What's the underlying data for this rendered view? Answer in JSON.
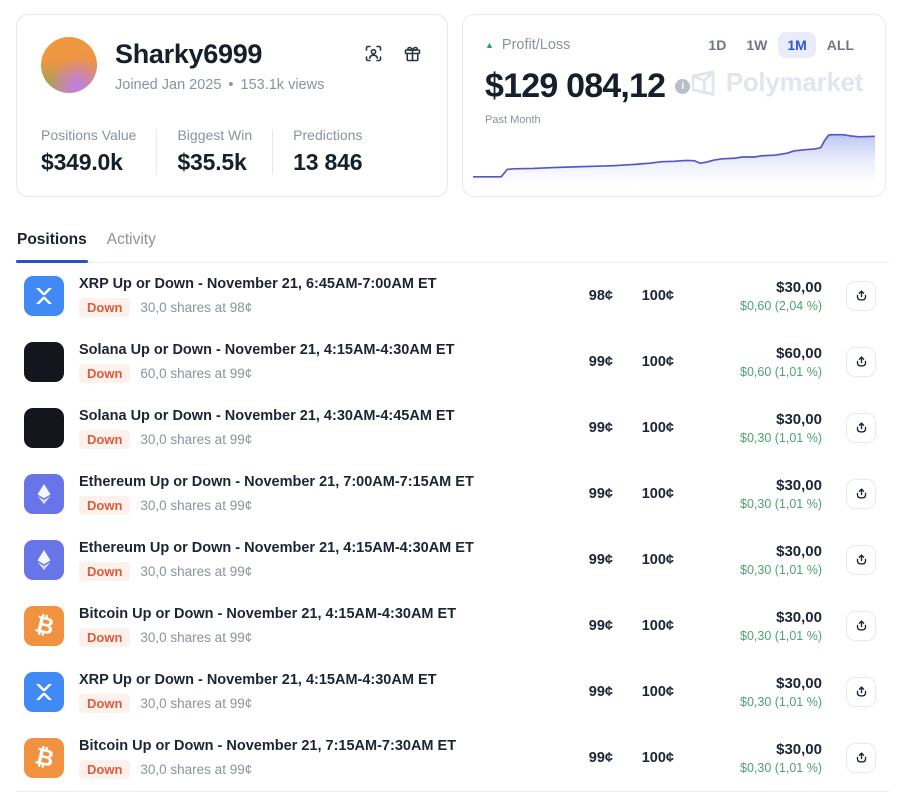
{
  "profile": {
    "name": "Sharky6999",
    "joined": "Joined Jan 2025",
    "separator": "•",
    "views": "153.1k views",
    "stats": [
      {
        "label": "Positions Value",
        "value": "$349.0k"
      },
      {
        "label": "Biggest Win",
        "value": "$35.5k"
      },
      {
        "label": "Predictions",
        "value": "13 846"
      }
    ]
  },
  "pnl": {
    "label": "Profit/Loss",
    "value": "$129 084,12",
    "period": "Past Month",
    "ranges": [
      "1D",
      "1W",
      "1M",
      "ALL"
    ],
    "active_range": "1M",
    "watermark": "Polymarket"
  },
  "tabs": [
    {
      "label": "Positions",
      "active": true
    },
    {
      "label": "Activity",
      "active": false
    }
  ],
  "positions": [
    {
      "icon": "xrp",
      "market": "XRP Up or Down - November 21, 6:45AM-7:00AM ET",
      "side": "Down",
      "shares": "30,0 shares at 98¢",
      "price": "98¢",
      "current": "100¢",
      "value": "$30,00",
      "gain": "$0,60 (2,04 %)"
    },
    {
      "icon": "solana",
      "market": "Solana Up or Down - November 21, 4:15AM-4:30AM ET",
      "side": "Down",
      "shares": "60,0 shares at 99¢",
      "price": "99¢",
      "current": "100¢",
      "value": "$60,00",
      "gain": "$0,60 (1,01 %)"
    },
    {
      "icon": "solana",
      "market": "Solana Up or Down - November 21, 4:30AM-4:45AM ET",
      "side": "Down",
      "shares": "30,0 shares at 99¢",
      "price": "99¢",
      "current": "100¢",
      "value": "$30,00",
      "gain": "$0,30 (1,01 %)"
    },
    {
      "icon": "ethereum",
      "market": "Ethereum Up or Down - November 21, 7:00AM-7:15AM ET",
      "side": "Down",
      "shares": "30,0 shares at 99¢",
      "price": "99¢",
      "current": "100¢",
      "value": "$30,00",
      "gain": "$0,30 (1,01 %)"
    },
    {
      "icon": "ethereum",
      "market": "Ethereum Up or Down - November 21, 4:15AM-4:30AM ET",
      "side": "Down",
      "shares": "30,0 shares at 99¢",
      "price": "99¢",
      "current": "100¢",
      "value": "$30,00",
      "gain": "$0,30 (1,01 %)"
    },
    {
      "icon": "bitcoin",
      "market": "Bitcoin Up or Down - November 21, 4:15AM-4:30AM ET",
      "side": "Down",
      "shares": "30,0 shares at 99¢",
      "price": "99¢",
      "current": "100¢",
      "value": "$30,00",
      "gain": "$0,30 (1,01 %)"
    },
    {
      "icon": "xrp",
      "market": "XRP Up or Down - November 21, 4:15AM-4:30AM ET",
      "side": "Down",
      "shares": "30,0 shares at 99¢",
      "price": "99¢",
      "current": "100¢",
      "value": "$30,00",
      "gain": "$0,30 (1,01 %)"
    },
    {
      "icon": "bitcoin",
      "market": "Bitcoin Up or Down - November 21, 7:15AM-7:30AM ET",
      "side": "Down",
      "shares": "30,0 shares at 99¢",
      "price": "99¢",
      "current": "100¢",
      "value": "$30,00",
      "gain": "$0,30 (1,01 %)"
    }
  ],
  "chart_data": {
    "type": "area",
    "title": "Profit/Loss",
    "period": "Past Month",
    "end_value_usd": 129084.12,
    "x_axis": "time over past month (unlabeled sparkline)",
    "y_axis": "cumulative profit/loss USD (unlabeled sparkline)",
    "grid": false,
    "legend": false,
    "line_color": "#5456c7",
    "fill_color_top": "#b9c2f2",
    "fill_color_bottom": "#ffffff",
    "points_norm": [
      [
        0.0,
        0.82
      ],
      [
        0.07,
        0.82
      ],
      [
        0.085,
        0.7
      ],
      [
        0.1,
        0.69
      ],
      [
        0.15,
        0.685
      ],
      [
        0.2,
        0.67
      ],
      [
        0.25,
        0.66
      ],
      [
        0.3,
        0.65
      ],
      [
        0.35,
        0.64
      ],
      [
        0.4,
        0.62
      ],
      [
        0.44,
        0.6
      ],
      [
        0.47,
        0.575
      ],
      [
        0.5,
        0.57
      ],
      [
        0.53,
        0.555
      ],
      [
        0.55,
        0.56
      ],
      [
        0.565,
        0.6
      ],
      [
        0.58,
        0.585
      ],
      [
        0.6,
        0.55
      ],
      [
        0.62,
        0.53
      ],
      [
        0.65,
        0.52
      ],
      [
        0.67,
        0.5
      ],
      [
        0.7,
        0.5
      ],
      [
        0.72,
        0.48
      ],
      [
        0.75,
        0.47
      ],
      [
        0.78,
        0.44
      ],
      [
        0.8,
        0.4
      ],
      [
        0.83,
        0.38
      ],
      [
        0.85,
        0.37
      ],
      [
        0.865,
        0.35
      ],
      [
        0.875,
        0.23
      ],
      [
        0.885,
        0.145
      ],
      [
        0.9,
        0.14
      ],
      [
        0.92,
        0.14
      ],
      [
        0.94,
        0.16
      ],
      [
        0.96,
        0.175
      ],
      [
        0.98,
        0.17
      ],
      [
        1.0,
        0.165
      ]
    ]
  },
  "colors": {
    "accent_blue": "#2c53c4",
    "range_active_text": "#3056d3",
    "range_active_bg": "#e9edfb",
    "positive_green": "#4da273",
    "pnl_triangle_green": "#2f9e63",
    "down_badge_text": "#dc5a3d",
    "down_badge_bg": "#fdf1ec",
    "chart_line": "#5456c7",
    "xrp_icon_bg": "#4189f4",
    "solana_icon_bg": "#15151d",
    "ethereum_icon_bg": "#6775e9",
    "bitcoin_icon_bg": "#f0923f",
    "muted_text": "#8b92a0",
    "card_border": "#e7e9ee"
  }
}
